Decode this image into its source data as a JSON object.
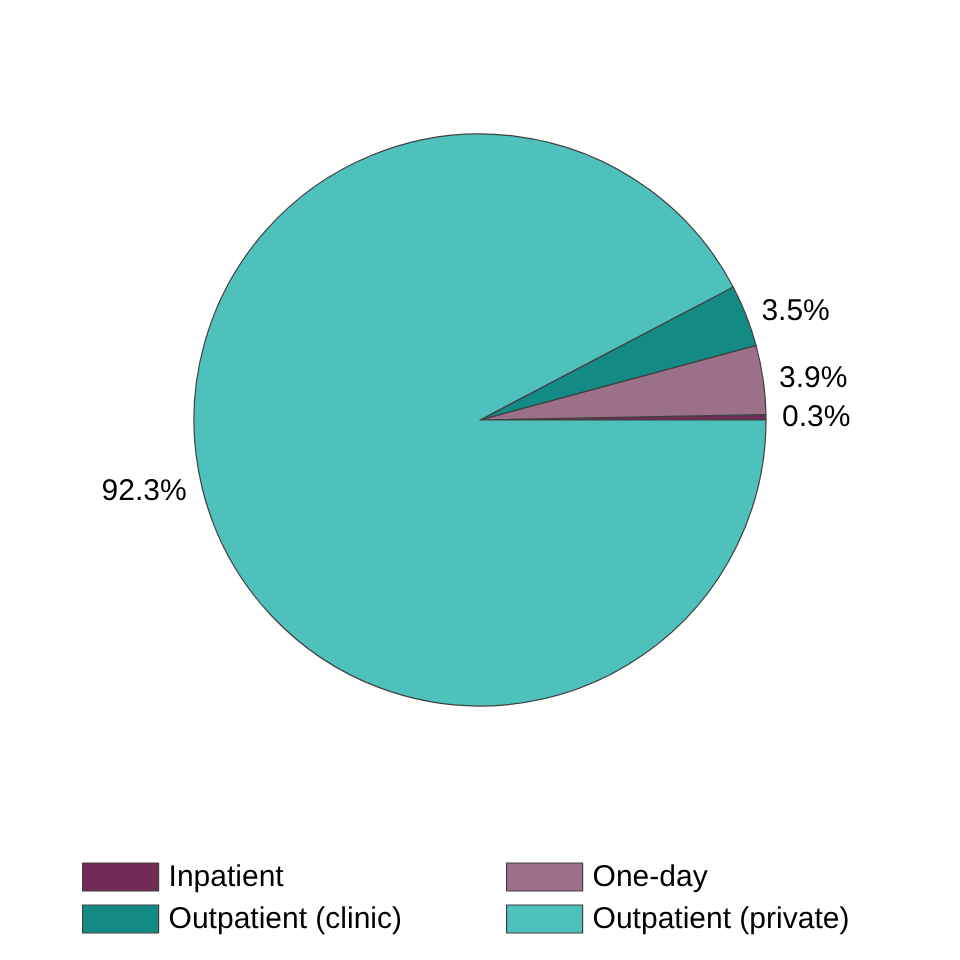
{
  "chart_data": {
    "type": "pie",
    "categories": [
      "Inpatient",
      "One-day",
      "Outpatient (clinic)",
      "Outpatient (private)"
    ],
    "values": [
      0.3,
      3.9,
      3.5,
      92.3
    ],
    "value_labels": [
      "0.3%",
      "3.9%",
      "3.5%",
      "92.3%"
    ],
    "colors": [
      "#722b57",
      "#9c7088",
      "#148a84",
      "#4fc1bd"
    ],
    "legend": "bottom"
  }
}
